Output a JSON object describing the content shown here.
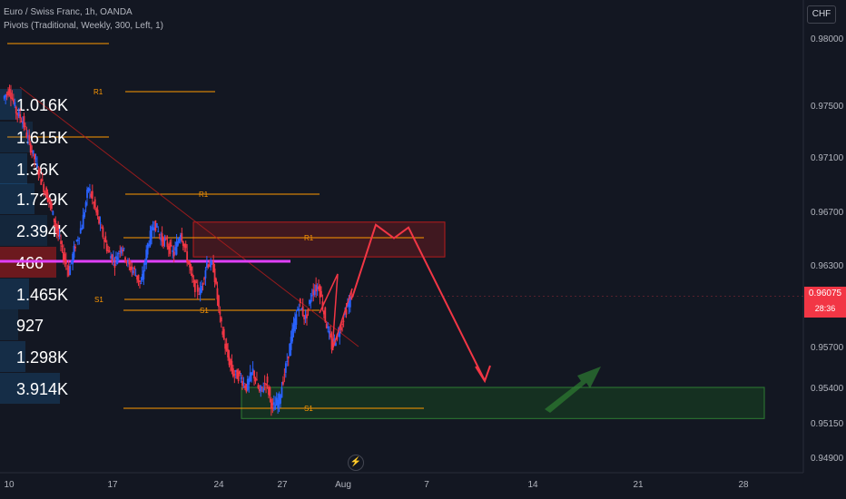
{
  "header": {
    "symbol_line": "Euro / Swiss Franc, 1h, OANDA",
    "indicator_line": "Pivots (Traditional, Weekly, 300, Left, 1)"
  },
  "currency_badge": "CHF",
  "last_price": {
    "value": "0.96075",
    "countdown": "28:36"
  },
  "alert_icon": "lightning-icon",
  "colors": {
    "background": "#131722",
    "up": "#2962ff",
    "down": "#f23645",
    "pivot": "#ff9800",
    "volume_profile_line": "#e040fb",
    "zone_red": "#b71c1c",
    "zone_green": "#1b5e20",
    "projection": "#f23645",
    "projection_up": "#2e7d32"
  },
  "chart_data": {
    "type": "candlestick",
    "y_axis_ticks": [
      "0.98000",
      "0.97500",
      "0.97100",
      "0.96700",
      "0.96300",
      "0.95700",
      "0.95400",
      "0.95150",
      "0.94900"
    ],
    "x_axis_ticks": [
      "10",
      "17",
      "24",
      "27",
      "Aug",
      "7",
      "14",
      "21",
      "28"
    ],
    "price_path": [
      0.9755,
      0.9762,
      0.9745,
      0.9738,
      0.972,
      0.9706,
      0.969,
      0.9678,
      0.966,
      0.964,
      0.9625,
      0.9645,
      0.966,
      0.9688,
      0.9672,
      0.9655,
      0.964,
      0.9632,
      0.9645,
      0.963,
      0.9625,
      0.9615,
      0.9645,
      0.9662,
      0.965,
      0.9645,
      0.9638,
      0.9655,
      0.9635,
      0.9615,
      0.961,
      0.9632,
      0.9628,
      0.959,
      0.9565,
      0.955,
      0.9548,
      0.954,
      0.9552,
      0.9536,
      0.9545,
      0.9525,
      0.9532,
      0.9555,
      0.958,
      0.9602,
      0.959,
      0.961,
      0.9615,
      0.959,
      0.957,
      0.958,
      0.9595,
      0.9607
    ],
    "volume_profile": [
      "1.016K",
      "1.615K",
      "1.36K",
      "1.729K",
      "2.394K",
      "466",
      "1.465K",
      "927",
      "1.298K",
      "3.914K"
    ],
    "pivot_labels": [
      "R1",
      "S1",
      "R1",
      "S1",
      "R1",
      "S1"
    ],
    "zones": [
      {
        "name": "resistance-zone",
        "from": 0.9636,
        "to": 0.9662
      },
      {
        "name": "support-zone",
        "from": 0.9518,
        "to": 0.954
      }
    ],
    "projection_path": [
      0.9606,
      0.966,
      0.965,
      0.9658,
      0.9545
    ]
  }
}
